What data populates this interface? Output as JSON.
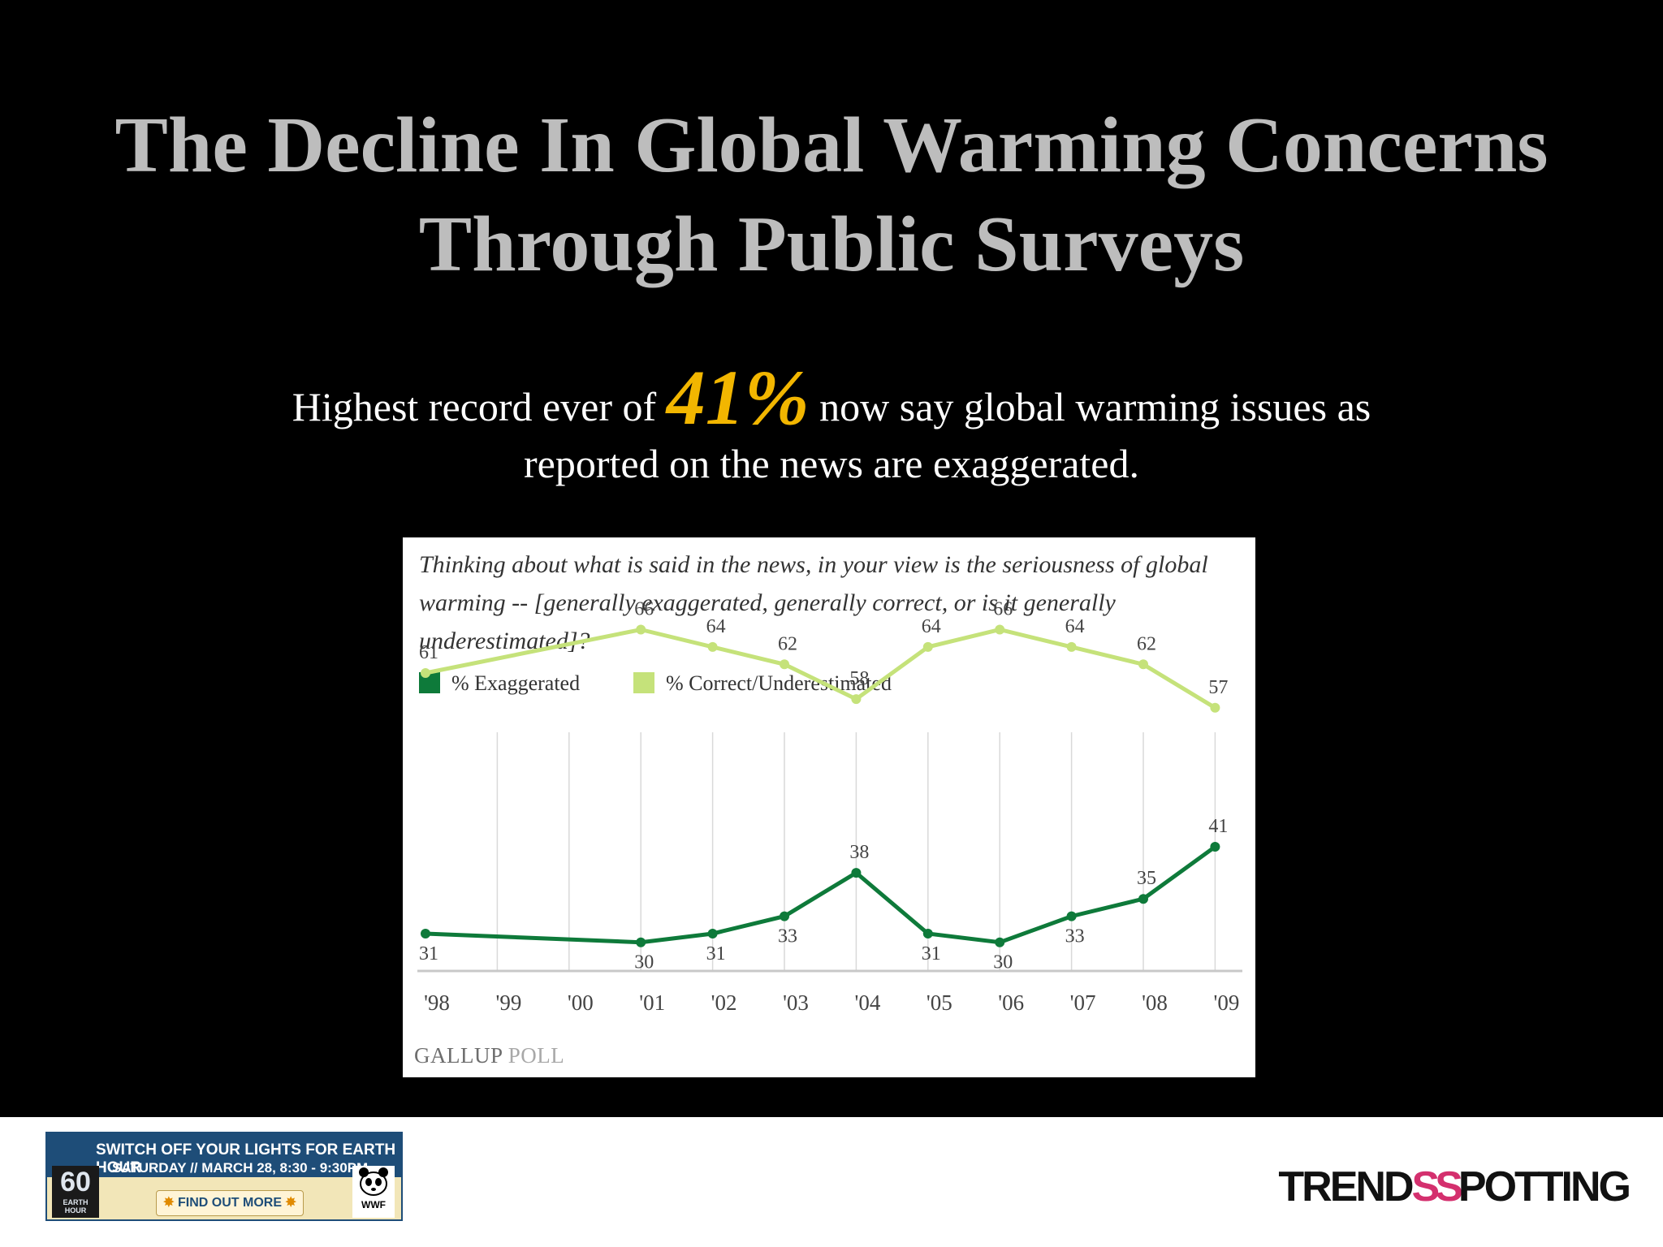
{
  "slide": {
    "title_line1": "The Decline In Global Warming Concerns",
    "title_line2": "Through Public Surveys",
    "subtitle_pre": "Highest record ever of ",
    "subtitle_highlight": "41%",
    "subtitle_post": " now say global warming issues as",
    "subtitle_line2": "reported on the news are exaggerated.",
    "highlight_color": "#f2b600"
  },
  "chart_data": {
    "type": "line",
    "title": "Thinking about what is said in the news, in your view is the seriousness of global warming -- [generally exaggerated, generally correct, or is it generally underestimated]?",
    "x": [
      "'98",
      "'99",
      "'00",
      "'01",
      "'02",
      "'03",
      "'04",
      "'05",
      "'06",
      "'07",
      "'08",
      "'09"
    ],
    "series": [
      {
        "name": "% Exaggerated",
        "color": "#0e7a3a",
        "points": [
          [
            "'98",
            31
          ],
          [
            "'01",
            30
          ],
          [
            "'02",
            31
          ],
          [
            "'03",
            33
          ],
          [
            "'04",
            38
          ],
          [
            "'05",
            31
          ],
          [
            "'06",
            30
          ],
          [
            "'07",
            33
          ],
          [
            "'08",
            35
          ],
          [
            "'09",
            41
          ]
        ]
      },
      {
        "name": "% Correct/Underestimated",
        "color": "#c5e27a",
        "points": [
          [
            "'98",
            61
          ],
          [
            "'01",
            66
          ],
          [
            "'02",
            64
          ],
          [
            "'03",
            62
          ],
          [
            "'04",
            58
          ],
          [
            "'05",
            64
          ],
          [
            "'06",
            66
          ],
          [
            "'07",
            64
          ],
          [
            "'08",
            62
          ],
          [
            "'09",
            57
          ]
        ]
      }
    ],
    "ylim": [
      20,
      75
    ],
    "grid": "vertical",
    "legend": "top-left",
    "source": {
      "bold": "GALLUP",
      "light": "POLL"
    }
  },
  "footer": {
    "earth_hour": {
      "line1": "SWITCH OFF YOUR LIGHTS FOR EARTH HOUR",
      "line2": "SATURDAY // MARCH 28, 8:30 - 9:30PM",
      "cta": "FIND OUT MORE",
      "badge_number": "60",
      "badge_text": "EARTH HOUR",
      "wwf": "WWF"
    },
    "brand": {
      "part1": "TREND",
      "part2": "SS",
      "part3": "POTTING"
    }
  }
}
